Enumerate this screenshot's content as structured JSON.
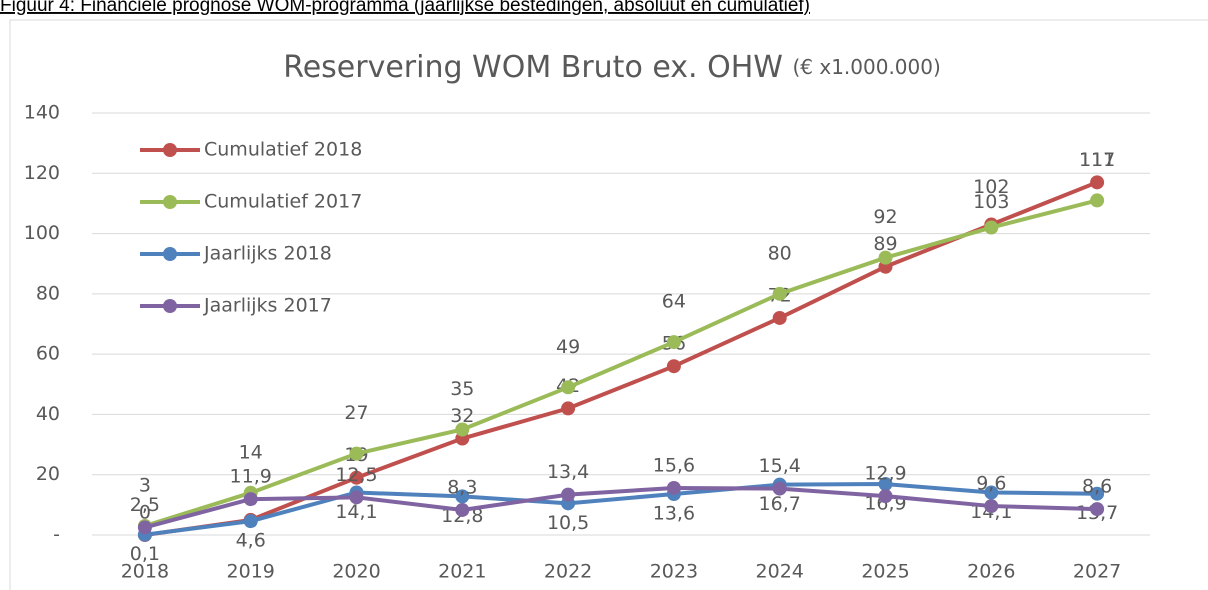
{
  "caption": "Figuur 4: Financiële prognose WOM-programma (jaarlijkse bestedingen, absoluut en cumulatief)",
  "chart_data": {
    "type": "line",
    "title": "Reservering WOM Bruto ex. OHW",
    "title_unit": "(€ x1.000.000)",
    "categories": [
      "2018",
      "2019",
      "2020",
      "2021",
      "2022",
      "2023",
      "2024",
      "2025",
      "2026",
      "2027"
    ],
    "ylim": [
      0,
      140
    ],
    "yticks": [
      {
        "value": 0,
        "label": "-"
      },
      20,
      40,
      60,
      80,
      100,
      120,
      140
    ],
    "grid": true,
    "legend": "top-left",
    "series": [
      {
        "name": "Cumulatief 2018",
        "color": "#c0504d",
        "values": [
          0,
          5,
          19,
          32,
          42,
          56,
          72,
          89,
          103,
          117
        ]
      },
      {
        "name": "Cumulatief 2017",
        "color": "#9bbb59",
        "values": [
          3,
          14,
          27,
          35,
          49,
          64,
          80,
          92,
          102,
          111
        ]
      },
      {
        "name": "Jaarlijks 2018",
        "color": "#4f81bd",
        "values": [
          0.1,
          4.6,
          14.1,
          12.8,
          10.5,
          13.6,
          16.7,
          16.9,
          14.1,
          13.7
        ],
        "value_labels": [
          "0,1",
          "4,6",
          "14,1",
          "12,8",
          "10,5",
          "13,6",
          "16,7",
          "16,9",
          "14,1",
          "13,7"
        ]
      },
      {
        "name": "Jaarlijks 2017",
        "color": "#8064a2",
        "values": [
          2.5,
          11.9,
          12.5,
          8.3,
          13.4,
          15.6,
          15.4,
          12.9,
          9.6,
          8.6
        ],
        "value_labels": [
          "2,5",
          "11,9",
          "12,5",
          "8,3",
          "13,4",
          "15,6",
          "15,4",
          "12,9",
          "9,6",
          "8,6"
        ]
      }
    ]
  }
}
